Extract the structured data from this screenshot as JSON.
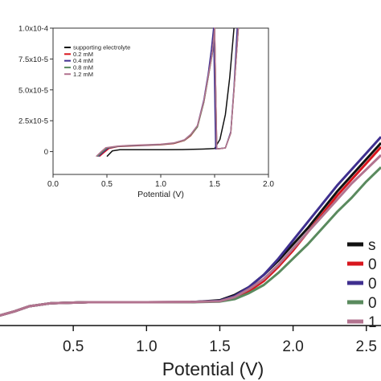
{
  "chart_data": [
    {
      "type": "line",
      "role": "main",
      "xlabel": "Potential (V)",
      "ylabel": "",
      "xlim": [
        0.0,
        2.6
      ],
      "ylim": [
        -0.05,
        1.0
      ],
      "x_ticks": [
        "0.5",
        "1.0",
        "1.5",
        "2.0",
        "2.5"
      ],
      "x_tick_values": [
        0.5,
        1.0,
        1.5,
        2.0,
        2.5
      ],
      "legend": {
        "placement": "right",
        "entries": [
          "s",
          "0",
          "0",
          "0",
          "1"
        ]
      },
      "series": [
        {
          "name": "s",
          "color": "#111111",
          "x": [
            0.0,
            0.1,
            0.2,
            0.35,
            0.6,
            1.0,
            1.3,
            1.5,
            1.6,
            1.7,
            1.8,
            1.9,
            2.0,
            2.1,
            2.2,
            2.3,
            2.4,
            2.5,
            2.6
          ],
          "y": [
            0.0,
            0.02,
            0.045,
            0.06,
            0.065,
            0.065,
            0.065,
            0.075,
            0.1,
            0.14,
            0.2,
            0.27,
            0.35,
            0.43,
            0.52,
            0.61,
            0.69,
            0.77,
            0.85
          ]
        },
        {
          "name": "0",
          "color": "#d8161e",
          "x": [
            0.0,
            0.1,
            0.2,
            0.35,
            0.6,
            1.0,
            1.3,
            1.5,
            1.6,
            1.7,
            1.8,
            1.9,
            2.0,
            2.1,
            2.2,
            2.3,
            2.4,
            2.5,
            2.6
          ],
          "y": [
            0.0,
            0.02,
            0.045,
            0.06,
            0.065,
            0.065,
            0.066,
            0.07,
            0.085,
            0.12,
            0.17,
            0.24,
            0.32,
            0.41,
            0.5,
            0.59,
            0.67,
            0.75,
            0.83
          ]
        },
        {
          "name": "0",
          "color": "#3f2f8f",
          "x": [
            0.0,
            0.1,
            0.2,
            0.35,
            0.6,
            1.0,
            1.3,
            1.5,
            1.6,
            1.7,
            1.8,
            1.9,
            2.0,
            2.1,
            2.2,
            2.3,
            2.4,
            2.5,
            2.6
          ],
          "y": [
            0.0,
            0.02,
            0.045,
            0.06,
            0.065,
            0.065,
            0.066,
            0.072,
            0.095,
            0.14,
            0.2,
            0.28,
            0.37,
            0.46,
            0.55,
            0.64,
            0.72,
            0.8,
            0.88
          ]
        },
        {
          "name": "0",
          "color": "#5a8a5e",
          "x": [
            0.0,
            0.1,
            0.2,
            0.35,
            0.6,
            1.0,
            1.3,
            1.5,
            1.6,
            1.7,
            1.8,
            1.9,
            2.0,
            2.1,
            2.2,
            2.3,
            2.4,
            2.5,
            2.6
          ],
          "y": [
            0.0,
            0.02,
            0.045,
            0.06,
            0.065,
            0.065,
            0.065,
            0.068,
            0.08,
            0.11,
            0.15,
            0.21,
            0.28,
            0.35,
            0.43,
            0.51,
            0.58,
            0.66,
            0.73
          ]
        },
        {
          "name": "1",
          "color": "#b2738f",
          "x": [
            0.0,
            0.1,
            0.2,
            0.35,
            0.6,
            1.0,
            1.3,
            1.5,
            1.6,
            1.7,
            1.8,
            1.9,
            2.0,
            2.1,
            2.2,
            2.3,
            2.4,
            2.5,
            2.6
          ],
          "y": [
            0.0,
            0.02,
            0.045,
            0.06,
            0.065,
            0.065,
            0.066,
            0.07,
            0.09,
            0.13,
            0.18,
            0.25,
            0.33,
            0.41,
            0.49,
            0.57,
            0.65,
            0.72,
            0.79
          ]
        }
      ]
    },
    {
      "type": "line",
      "role": "inset",
      "xlabel": "Potential (V)",
      "ylabel": "",
      "xlim": [
        0.0,
        2.0
      ],
      "ylim": [
        -1.85e-05,
        0.0001
      ],
      "x_ticks": [
        "0.0",
        "0.5",
        "1.0",
        "1.5",
        "2.0"
      ],
      "x_tick_values": [
        0.0,
        0.5,
        1.0,
        1.5,
        2.0
      ],
      "y_ticks": [
        "0",
        "2.5x10-5",
        "5.0x10-5",
        "7.5x10-5",
        "1.0x10-4"
      ],
      "y_tick_values": [
        0,
        2.5e-05,
        5e-05,
        7.5e-05,
        0.0001
      ],
      "legend": {
        "placement": "top-left",
        "entries": [
          "supporting electrolyte",
          "0.2 mM",
          "0.4 mM",
          "0.8 mM",
          "1.2 mM"
        ]
      },
      "series": [
        {
          "name": "supporting electrolyte",
          "color": "#111111",
          "x": [
            0.5,
            0.55,
            0.62,
            0.7,
            0.85,
            1.05,
            1.2,
            1.3,
            1.38,
            1.45,
            1.5,
            1.55,
            1.6,
            1.64,
            1.68
          ],
          "y": [
            -4e-06,
            5e-07,
            1.5e-06,
            1.5e-06,
            1.5e-06,
            1.5e-06,
            1.6e-06,
            1.8e-06,
            2e-06,
            2.3e-06,
            2.5e-06,
            1e-05,
            3e-05,
            6e-05,
            0.0001
          ]
        },
        {
          "name": "0.2 mM",
          "color": "#d8161e",
          "x": [
            0.43,
            0.47,
            0.52,
            0.6,
            0.7,
            0.85,
            1.0,
            1.12,
            1.22,
            1.28,
            1.34,
            1.4,
            1.44,
            1.48,
            1.5,
            1.52,
            1.56,
            1.6,
            1.65,
            1.68,
            1.72
          ],
          "y": [
            -4e-06,
            -1e-06,
            2.5e-06,
            4e-06,
            4.5e-06,
            5e-06,
            5.5e-06,
            6.5e-06,
            9e-06,
            1.3e-05,
            2e-05,
            4e-05,
            6e-05,
            8e-05,
            0.0001,
            2.2e-06,
            2.5e-06,
            3e-06,
            1.5e-05,
            5e-05,
            0.0001
          ]
        },
        {
          "name": "0.4 mM",
          "color": "#3f2f8f",
          "x": [
            0.42,
            0.46,
            0.51,
            0.6,
            0.7,
            0.85,
            1.0,
            1.12,
            1.22,
            1.28,
            1.34,
            1.4,
            1.44,
            1.47,
            1.49,
            1.51,
            1.55,
            1.6,
            1.65,
            1.68,
            1.71
          ],
          "y": [
            -4e-06,
            -8e-07,
            2.8e-06,
            4.2e-06,
            4.7e-06,
            5.2e-06,
            5.7e-06,
            6.8e-06,
            9.5e-06,
            1.4e-05,
            2.1e-05,
            4.2e-05,
            6.3e-05,
            8.3e-05,
            0.0001,
            2.2e-06,
            2.5e-06,
            3e-06,
            1.6e-05,
            5.2e-05,
            0.0001
          ]
        },
        {
          "name": "0.8 mM",
          "color": "#5a8a5e",
          "x": [
            0.41,
            0.45,
            0.5,
            0.6,
            0.7,
            0.85,
            1.0,
            1.12,
            1.22,
            1.28,
            1.34,
            1.4,
            1.44,
            1.48,
            1.5,
            1.52,
            1.56,
            1.6,
            1.65,
            1.68,
            1.72
          ],
          "y": [
            -4e-06,
            -8e-07,
            3e-06,
            4.3e-06,
            4.8e-06,
            5.3e-06,
            5.8e-06,
            6.8e-06,
            9.2e-06,
            1.35e-05,
            2e-05,
            4e-05,
            6e-05,
            8e-05,
            0.0001,
            2.2e-06,
            2.5e-06,
            3e-06,
            1.5e-05,
            5e-05,
            0.0001
          ]
        },
        {
          "name": "1.2 mM",
          "color": "#b2738f",
          "x": [
            0.4,
            0.44,
            0.49,
            0.6,
            0.7,
            0.85,
            1.0,
            1.12,
            1.22,
            1.28,
            1.34,
            1.4,
            1.44,
            1.48,
            1.5,
            1.52,
            1.56,
            1.6,
            1.65,
            1.68,
            1.72
          ],
          "y": [
            -4e-06,
            -6e-07,
            3.2e-06,
            4.5e-06,
            5e-06,
            5.5e-06,
            6e-06,
            7e-06,
            9.5e-06,
            1.4e-05,
            2.1e-05,
            4.1e-05,
            6.1e-05,
            8.1e-05,
            0.0001,
            2.2e-06,
            2.5e-06,
            3e-06,
            1.5e-05,
            5e-05,
            0.0001
          ]
        }
      ]
    }
  ]
}
